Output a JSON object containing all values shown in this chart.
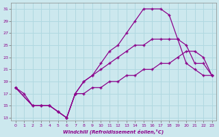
{
  "xlabel": "Windchill (Refroidissement éolien,°C)",
  "bg_color": "#cce8ee",
  "line_color": "#8b008b",
  "grid_color": "#b0d8e0",
  "xlim": [
    -0.5,
    23.5
  ],
  "ylim": [
    12.5,
    32
  ],
  "xticks": [
    0,
    1,
    2,
    3,
    4,
    5,
    6,
    7,
    8,
    9,
    10,
    11,
    12,
    13,
    14,
    15,
    16,
    17,
    18,
    19,
    20,
    21,
    22,
    23
  ],
  "yticks": [
    13,
    15,
    17,
    19,
    21,
    23,
    25,
    27,
    29,
    31
  ],
  "lines": [
    {
      "x": [
        0,
        1,
        2,
        3,
        4,
        5,
        6,
        7,
        8,
        9,
        10,
        11,
        12,
        13,
        14,
        15,
        16,
        17,
        18,
        19,
        20,
        21,
        22,
        23
      ],
      "y": [
        18,
        17,
        15,
        15,
        15,
        14,
        13,
        17,
        19,
        20,
        22,
        24,
        25,
        27,
        29,
        31,
        31,
        31,
        30,
        26,
        22,
        21,
        20,
        20
      ]
    },
    {
      "x": [
        0,
        2,
        3,
        4,
        5,
        6,
        7,
        8,
        9,
        10,
        11,
        12,
        13,
        14,
        15,
        16,
        17,
        18,
        19,
        20,
        21,
        22,
        23
      ],
      "y": [
        18,
        15,
        15,
        15,
        14,
        13,
        17,
        19,
        20,
        21,
        22,
        23,
        24,
        25,
        25,
        26,
        26,
        26,
        26,
        25,
        22,
        22,
        20
      ]
    },
    {
      "x": [
        0,
        2,
        3,
        4,
        5,
        6,
        7,
        8,
        9,
        10,
        11,
        12,
        13,
        14,
        15,
        16,
        17,
        18,
        19,
        20,
        21,
        22,
        23
      ],
      "y": [
        18,
        15,
        15,
        15,
        14,
        13,
        17,
        17,
        18,
        18,
        19,
        19,
        20,
        20,
        21,
        21,
        22,
        22,
        23,
        24,
        24,
        23,
        20
      ]
    }
  ]
}
